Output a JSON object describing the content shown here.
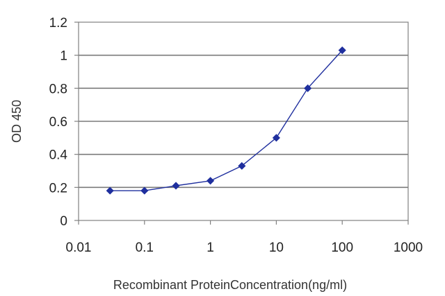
{
  "chart_data": {
    "type": "line",
    "title": "",
    "xlabel": "Recombinant ProteinConcentration(ng/ml)",
    "ylabel": "OD 450",
    "x_scale": "log",
    "xlim": [
      0.01,
      1000
    ],
    "ylim": [
      0,
      1.2
    ],
    "x_ticks": [
      0.01,
      0.1,
      1,
      10,
      100,
      1000
    ],
    "x_tick_labels": [
      "0.01",
      "0.1",
      "1",
      "10",
      "100",
      "1000"
    ],
    "y_ticks": [
      0,
      0.2,
      0.4,
      0.6,
      0.8,
      1,
      1.2
    ],
    "y_tick_labels": [
      "0",
      "0.2",
      "0.4",
      "0.6",
      "0.8",
      "1",
      "1.2"
    ],
    "grid": "horizontal",
    "legend": "none",
    "series": [
      {
        "x": [
          0.03,
          0.1,
          0.3,
          1,
          3,
          10,
          30,
          100
        ],
        "y": [
          0.18,
          0.18,
          0.21,
          0.24,
          0.33,
          0.5,
          0.8,
          1.03
        ],
        "color": "#1f2f9e",
        "marker": "diamond"
      }
    ]
  }
}
